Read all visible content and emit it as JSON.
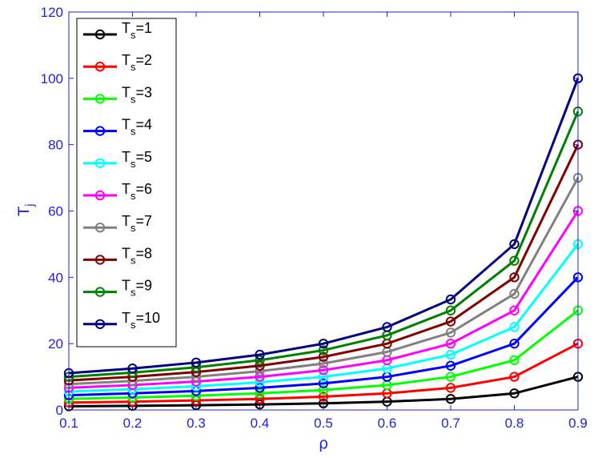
{
  "chart_data": {
    "type": "line",
    "title": "",
    "xlabel": "ρ",
    "ylabel": "T",
    "ylabel_subscript": "j",
    "x": [
      0.1,
      0.2,
      0.3,
      0.4,
      0.5,
      0.6,
      0.7,
      0.8,
      0.9
    ],
    "xlim": [
      0.1,
      0.9
    ],
    "ylim": [
      0,
      120
    ],
    "xticks": [
      "0.1",
      "0.2",
      "0.3",
      "0.4",
      "0.5",
      "0.6",
      "0.7",
      "0.8",
      "0.9"
    ],
    "yticks": [
      "0",
      "20",
      "40",
      "60",
      "80",
      "100",
      "120"
    ],
    "grid": false,
    "legend_position": "top-left",
    "series": [
      {
        "name": "T",
        "name_sub": "s",
        "name_suffix": "=1",
        "color": "#000000",
        "values": [
          1.11,
          1.25,
          1.43,
          1.67,
          2.0,
          2.5,
          3.33,
          5.0,
          10.0
        ]
      },
      {
        "name": "T",
        "name_sub": "s",
        "name_suffix": "=2",
        "color": "#ff0000",
        "values": [
          2.22,
          2.5,
          2.86,
          3.33,
          4.0,
          5.0,
          6.67,
          10.0,
          20.0
        ]
      },
      {
        "name": "T",
        "name_sub": "s",
        "name_suffix": "=3",
        "color": "#00ff00",
        "values": [
          3.33,
          3.75,
          4.29,
          5.0,
          6.0,
          7.5,
          10.0,
          15.0,
          30.0
        ]
      },
      {
        "name": "T",
        "name_sub": "s",
        "name_suffix": "=4",
        "color": "#0000ff",
        "values": [
          4.44,
          5.0,
          5.71,
          6.67,
          8.0,
          10.0,
          13.33,
          20.0,
          40.0
        ]
      },
      {
        "name": "T",
        "name_sub": "s",
        "name_suffix": "=5",
        "color": "#00ffff",
        "values": [
          5.56,
          6.25,
          7.14,
          8.33,
          10.0,
          12.5,
          16.67,
          25.0,
          50.0
        ]
      },
      {
        "name": "T",
        "name_sub": "s",
        "name_suffix": "=6",
        "color": "#ff00ff",
        "values": [
          6.67,
          7.5,
          8.57,
          10.0,
          12.0,
          15.0,
          20.0,
          30.0,
          60.0
        ]
      },
      {
        "name": "T",
        "name_sub": "s",
        "name_suffix": "=7",
        "color": "#808080",
        "values": [
          7.78,
          8.75,
          10.0,
          11.67,
          14.0,
          17.5,
          23.33,
          35.0,
          70.0
        ]
      },
      {
        "name": "T",
        "name_sub": "s",
        "name_suffix": "=8",
        "color": "#800000",
        "values": [
          8.89,
          10.0,
          11.43,
          13.33,
          16.0,
          20.0,
          26.67,
          40.0,
          80.0
        ]
      },
      {
        "name": "T",
        "name_sub": "s",
        "name_suffix": "=9",
        "color": "#008000",
        "values": [
          10.0,
          11.25,
          12.86,
          15.0,
          18.0,
          22.5,
          30.0,
          45.0,
          90.0
        ]
      },
      {
        "name": "T",
        "name_sub": "s",
        "name_suffix": "=10",
        "color": "#000080",
        "values": [
          11.11,
          12.5,
          14.29,
          16.67,
          20.0,
          25.0,
          33.33,
          50.0,
          100.0
        ]
      }
    ]
  }
}
